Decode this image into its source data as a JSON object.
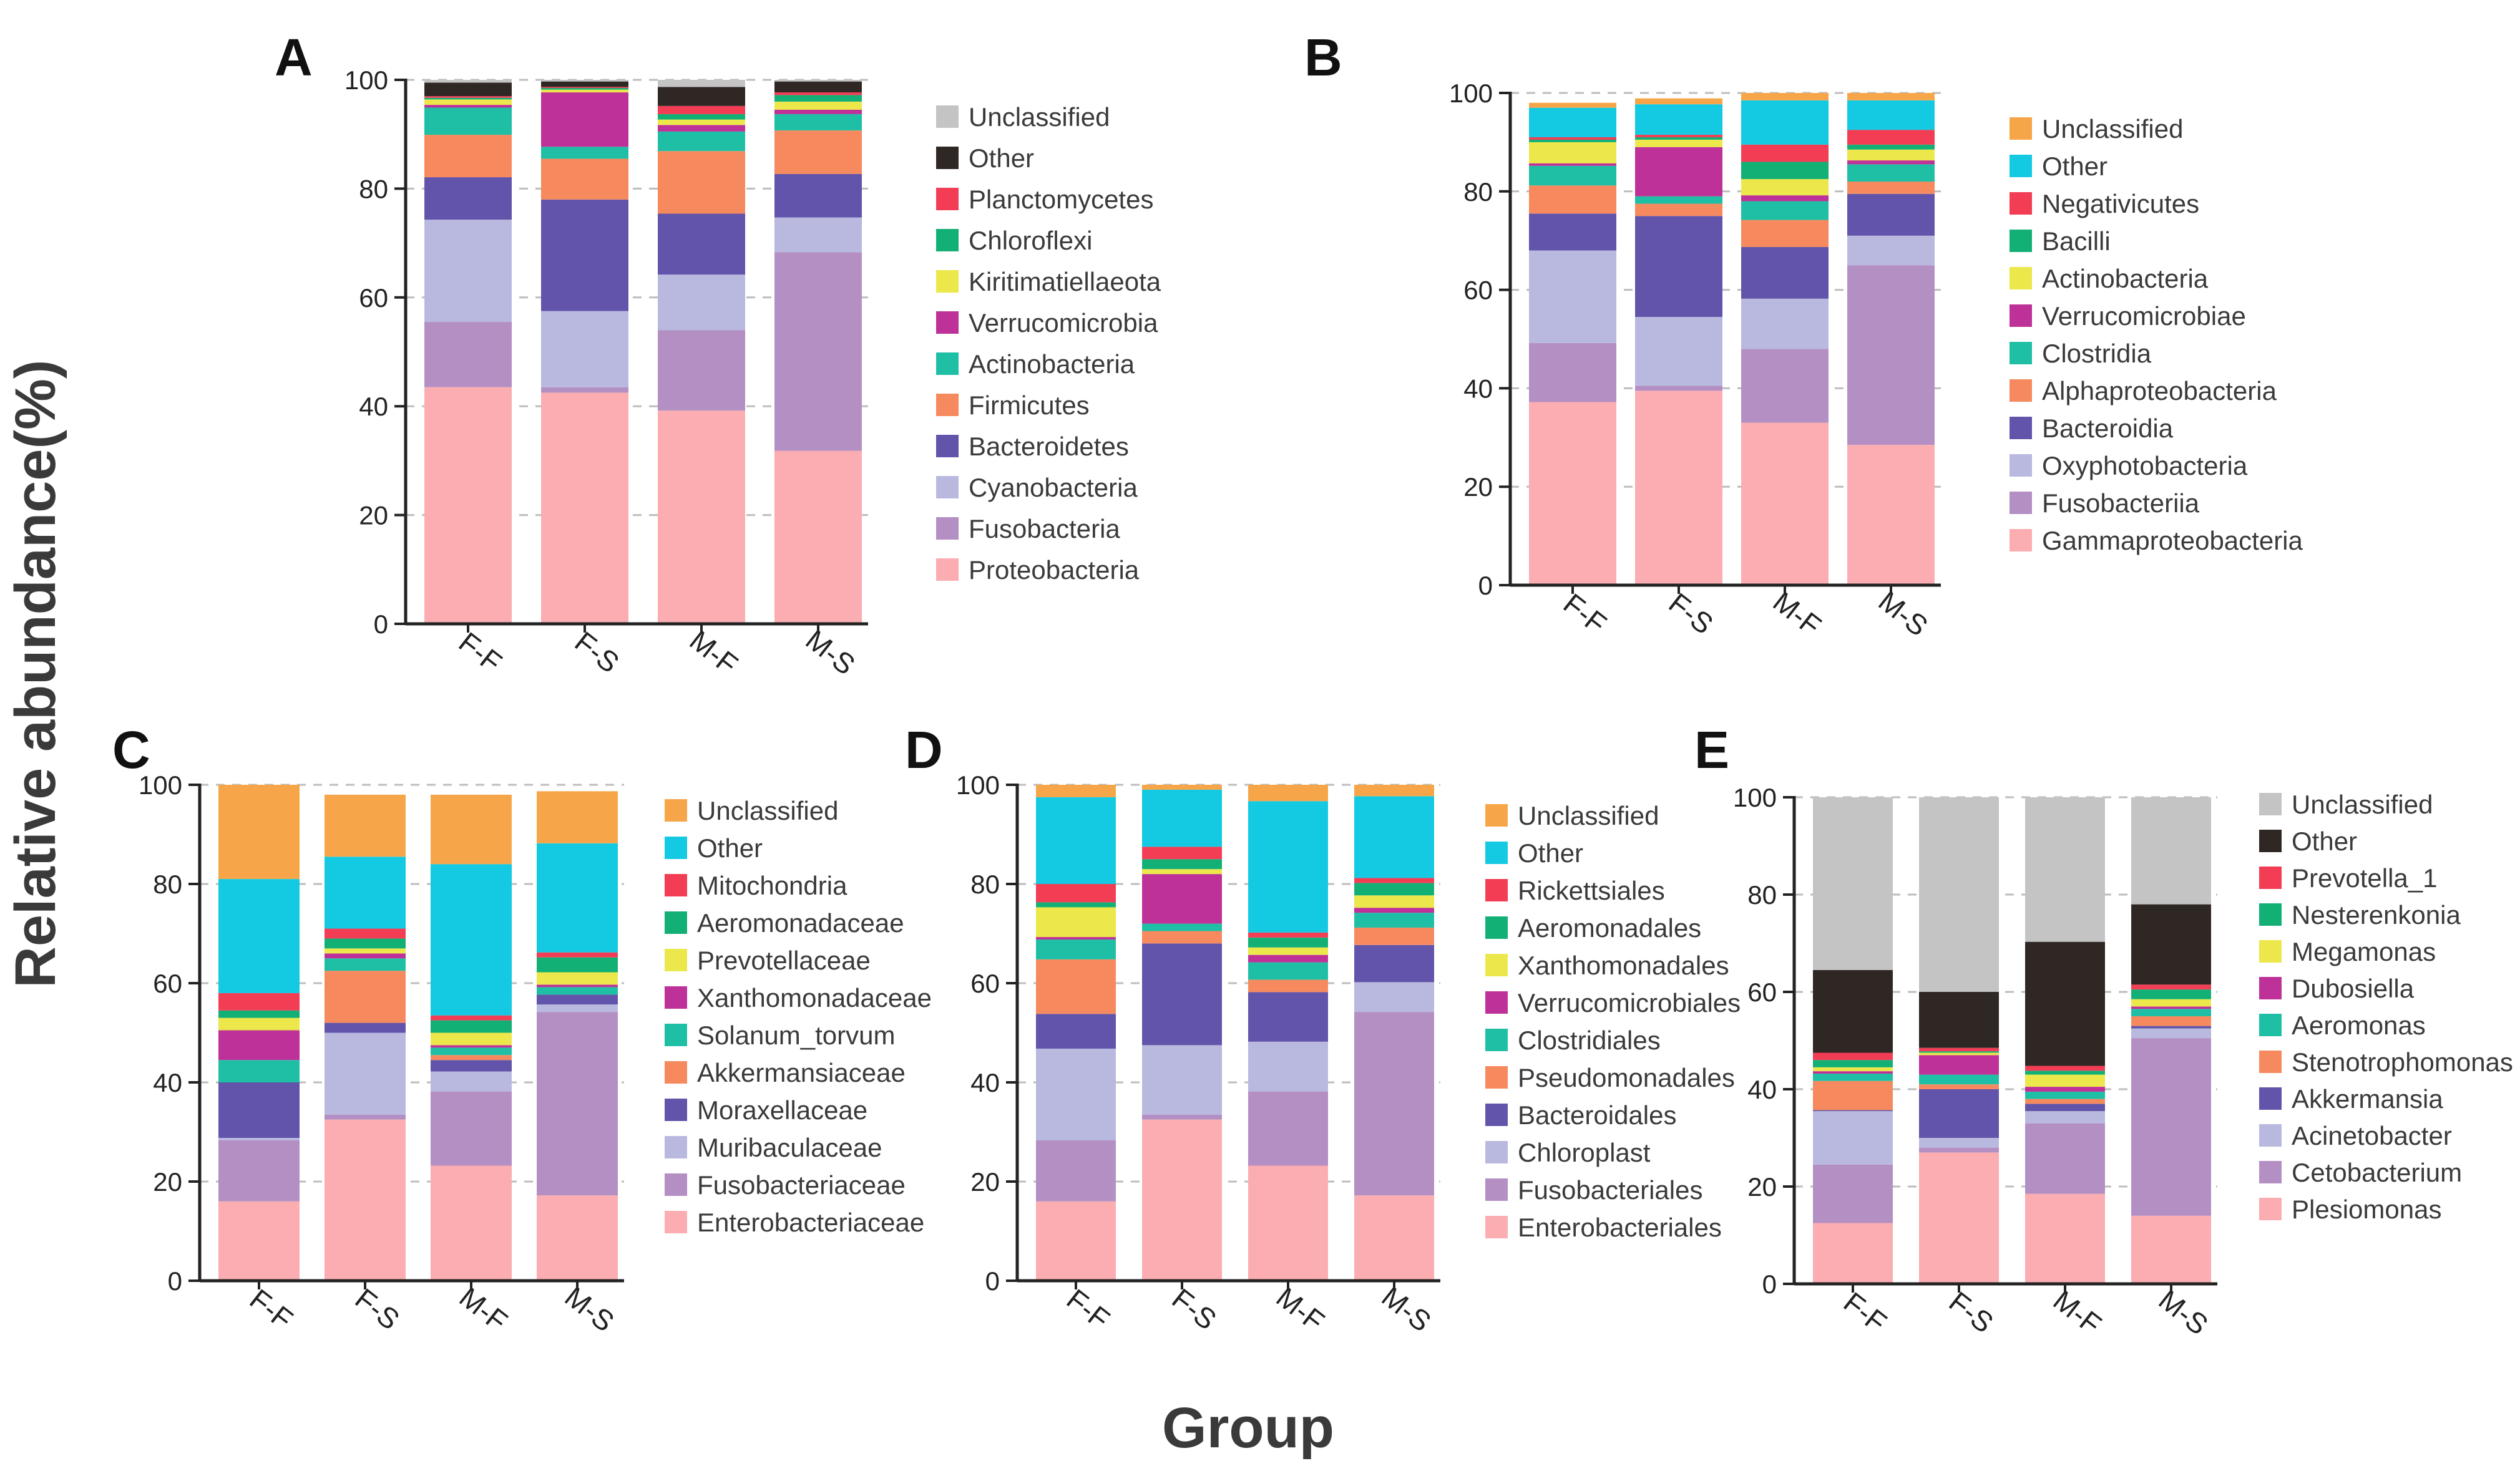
{
  "figure": {
    "ylabel": "Relative abundance(%)",
    "xlabel": "Group"
  },
  "chart_data": [
    {
      "type": "bar",
      "stacked": true,
      "panel": "A",
      "categories": [
        "F-F",
        "F-S",
        "M-F",
        "M-S"
      ],
      "ylim": [
        0,
        100
      ],
      "yticks": [
        0,
        20,
        40,
        60,
        80,
        100
      ],
      "legend_placement": "right",
      "series": [
        {
          "name": "Proteobacteria",
          "color": "#fbadb1",
          "values": [
            43.5,
            42.5,
            39.2,
            31.8
          ]
        },
        {
          "name": "Fusobacteria",
          "color": "#b48fc3",
          "values": [
            12.0,
            1.0,
            14.8,
            36.5
          ]
        },
        {
          "name": "Cyanobacteria",
          "color": "#b9b9df",
          "values": [
            18.8,
            14.0,
            10.2,
            6.4
          ]
        },
        {
          "name": "Bacteroidetes",
          "color": "#6154aa",
          "values": [
            7.8,
            20.5,
            11.2,
            8.0
          ]
        },
        {
          "name": "Firmicutes",
          "color": "#f68a5e",
          "values": [
            7.8,
            7.5,
            11.5,
            8.0
          ]
        },
        {
          "name": "Actinobacteria",
          "color": "#1fbfa6",
          "values": [
            5.0,
            2.2,
            3.6,
            3.0
          ]
        },
        {
          "name": "Verrucomicrobia",
          "color": "#be3198",
          "values": [
            0.5,
            10.0,
            1.2,
            0.8
          ]
        },
        {
          "name": "Kiritimatiellaeota",
          "color": "#ece74b",
          "values": [
            1.0,
            0.5,
            1.0,
            1.5
          ]
        },
        {
          "name": "Chloroflexi",
          "color": "#13b076",
          "values": [
            0.3,
            0.3,
            1.0,
            1.2
          ]
        },
        {
          "name": "Planctomycetes",
          "color": "#f23d55",
          "values": [
            0.3,
            0.2,
            1.5,
            0.5
          ]
        },
        {
          "name": "Other",
          "color": "#2f2724",
          "values": [
            2.5,
            1.0,
            3.5,
            2.0
          ]
        },
        {
          "name": "Unclassified",
          "color": "#c4c4c4",
          "values": [
            0.5,
            0.3,
            1.3,
            0.3
          ]
        }
      ]
    },
    {
      "type": "bar",
      "stacked": true,
      "panel": "B",
      "categories": [
        "F-F",
        "F-S",
        "M-F",
        "M-S"
      ],
      "ylim": [
        0,
        100
      ],
      "yticks": [
        0,
        20,
        40,
        60,
        80,
        100
      ],
      "legend_placement": "right",
      "series": [
        {
          "name": "Gammaproteobacteria",
          "color": "#fbadb1",
          "values": [
            37.2,
            39.5,
            33.0,
            28.5
          ]
        },
        {
          "name": "Fusobacteriia",
          "color": "#b48fc3",
          "values": [
            12.0,
            1.0,
            15.0,
            36.5
          ]
        },
        {
          "name": "Oxyphotobacteria",
          "color": "#b9b9df",
          "values": [
            18.8,
            14.0,
            10.2,
            6.0
          ]
        },
        {
          "name": "Bacteroidia",
          "color": "#6154aa",
          "values": [
            7.5,
            20.5,
            10.5,
            8.5
          ]
        },
        {
          "name": "Alphaproteobacteria",
          "color": "#f68a5e",
          "values": [
            5.7,
            2.5,
            5.5,
            2.5
          ]
        },
        {
          "name": "Clostridia",
          "color": "#1fbfa6",
          "values": [
            4.0,
            1.5,
            3.8,
            3.5
          ]
        },
        {
          "name": "Verrucomicrobiae",
          "color": "#be3198",
          "values": [
            0.5,
            10.0,
            1.2,
            0.8
          ]
        },
        {
          "name": "Actinobacteria",
          "color": "#ece74b",
          "values": [
            4.3,
            1.5,
            3.3,
            2.2
          ]
        },
        {
          "name": "Bacilli",
          "color": "#13b076",
          "values": [
            0.5,
            0.5,
            3.5,
            1.0
          ]
        },
        {
          "name": "Negativicutes",
          "color": "#f23d55",
          "values": [
            0.5,
            0.5,
            3.5,
            3.0
          ]
        },
        {
          "name": "Other",
          "color": "#14c9e2",
          "values": [
            6.0,
            6.2,
            9.0,
            6.0
          ]
        },
        {
          "name": "Unclassified",
          "color": "#f6a649",
          "values": [
            1.0,
            1.2,
            1.5,
            1.5
          ]
        }
      ]
    },
    {
      "type": "bar",
      "stacked": true,
      "panel": "C",
      "categories": [
        "F-F",
        "F-S",
        "M-F",
        "M-S"
      ],
      "ylim": [
        0,
        100
      ],
      "yticks": [
        0,
        20,
        40,
        60,
        80,
        100
      ],
      "legend_placement": "right",
      "series": [
        {
          "name": "Enterobacteriaceae",
          "color": "#fbadb1",
          "values": [
            16.0,
            32.5,
            23.2,
            17.2
          ]
        },
        {
          "name": "Fusobacteriaceae",
          "color": "#b48fc3",
          "values": [
            12.3,
            1.0,
            15.0,
            37.0
          ]
        },
        {
          "name": "Muribaculaceae",
          "color": "#b9b9df",
          "values": [
            0.5,
            16.5,
            4.0,
            1.5
          ]
        },
        {
          "name": "Moraxellaceae",
          "color": "#6154aa",
          "values": [
            11.2,
            2.0,
            2.3,
            2.0
          ]
        },
        {
          "name": "Akkermansiaceae",
          "color": "#f68a5e",
          "values": [
            0.0,
            10.5,
            1.0,
            0.0
          ]
        },
        {
          "name": "Solanum_torvum",
          "color": "#1fbfa6",
          "values": [
            4.5,
            2.5,
            1.5,
            1.5
          ]
        },
        {
          "name": "Xanthomonadaceae",
          "color": "#be3198",
          "values": [
            6.0,
            1.0,
            0.5,
            0.5
          ]
        },
        {
          "name": "Prevotellaceae",
          "color": "#ece74b",
          "values": [
            2.5,
            1.0,
            2.5,
            2.5
          ]
        },
        {
          "name": "Aeromonadaceae",
          "color": "#13b076",
          "values": [
            1.5,
            2.0,
            2.5,
            3.0
          ]
        },
        {
          "name": "Mitochondria",
          "color": "#f23d55",
          "values": [
            3.5,
            2.0,
            1.0,
            1.0
          ]
        },
        {
          "name": "Other",
          "color": "#14c9e2",
          "values": [
            23.0,
            14.5,
            30.5,
            22.0
          ]
        },
        {
          "name": "Unclassified",
          "color": "#f6a649",
          "values": [
            19.0,
            12.5,
            14.0,
            10.5
          ]
        }
      ]
    },
    {
      "type": "bar",
      "stacked": true,
      "panel": "D",
      "categories": [
        "F-F",
        "F-S",
        "M-F",
        "M-S"
      ],
      "ylim": [
        0,
        100
      ],
      "yticks": [
        0,
        20,
        40,
        60,
        80,
        100
      ],
      "legend_placement": "right",
      "series": [
        {
          "name": "Enterobacteriales",
          "color": "#fbadb1",
          "values": [
            16.0,
            32.5,
            23.2,
            17.2
          ]
        },
        {
          "name": "Fusobacteriales",
          "color": "#b48fc3",
          "values": [
            12.3,
            1.0,
            15.0,
            37.0
          ]
        },
        {
          "name": "Chloroplast",
          "color": "#b9b9df",
          "values": [
            18.5,
            14.0,
            10.0,
            6.0
          ]
        },
        {
          "name": "Bacteroidales",
          "color": "#6154aa",
          "values": [
            7.0,
            20.5,
            10.0,
            7.5
          ]
        },
        {
          "name": "Pseudomonadales",
          "color": "#f68a5e",
          "values": [
            11.0,
            2.5,
            2.5,
            3.5
          ]
        },
        {
          "name": "Clostridiales",
          "color": "#1fbfa6",
          "values": [
            4.0,
            1.5,
            3.5,
            3.0
          ]
        },
        {
          "name": "Verrucomicrobiales",
          "color": "#be3198",
          "values": [
            0.5,
            10.0,
            1.5,
            1.0
          ]
        },
        {
          "name": "Xanthomonadales",
          "color": "#ece74b",
          "values": [
            6.0,
            1.0,
            1.5,
            2.5
          ]
        },
        {
          "name": "Aeromonadales",
          "color": "#13b076",
          "values": [
            1.0,
            2.0,
            2.0,
            2.5
          ]
        },
        {
          "name": "Rickettsiales",
          "color": "#f23d55",
          "values": [
            3.7,
            2.5,
            1.0,
            1.0
          ]
        },
        {
          "name": "Other",
          "color": "#14c9e2",
          "values": [
            17.5,
            11.5,
            26.5,
            16.5
          ]
        },
        {
          "name": "Unclassified",
          "color": "#f6a649",
          "values": [
            2.5,
            1.0,
            3.3,
            2.3
          ]
        }
      ]
    },
    {
      "type": "bar",
      "stacked": true,
      "panel": "E",
      "categories": [
        "F-F",
        "F-S",
        "M-F",
        "M-S"
      ],
      "ylim": [
        0,
        100
      ],
      "yticks": [
        0,
        20,
        40,
        60,
        80,
        100
      ],
      "legend_placement": "right",
      "series": [
        {
          "name": "Plesiomonas",
          "color": "#fbadb1",
          "values": [
            12.5,
            27.0,
            18.5,
            14.0
          ]
        },
        {
          "name": "Cetobacterium",
          "color": "#b48fc3",
          "values": [
            12.0,
            1.0,
            14.5,
            36.5
          ]
        },
        {
          "name": "Acinetobacter",
          "color": "#b9b9df",
          "values": [
            11.0,
            2.0,
            2.5,
            2.0
          ]
        },
        {
          "name": "Akkermansia",
          "color": "#6154aa",
          "values": [
            0.2,
            10.0,
            1.5,
            0.5
          ]
        },
        {
          "name": "Stenotrophomonas",
          "color": "#f68a5e",
          "values": [
            6.0,
            1.0,
            1.0,
            2.0
          ]
        },
        {
          "name": "Aeromonas",
          "color": "#1fbfa6",
          "values": [
            1.5,
            2.0,
            1.5,
            1.5
          ]
        },
        {
          "name": "Dubosiella",
          "color": "#be3198",
          "values": [
            0.5,
            4.0,
            1.0,
            0.5
          ]
        },
        {
          "name": "Megamonas",
          "color": "#ece74b",
          "values": [
            0.8,
            0.5,
            2.5,
            1.5
          ]
        },
        {
          "name": "Nesterenkonia",
          "color": "#13b076",
          "values": [
            1.5,
            0.3,
            0.8,
            2.0
          ]
        },
        {
          "name": "Prevotella_1",
          "color": "#f23d55",
          "values": [
            1.5,
            0.7,
            1.0,
            1.0
          ]
        },
        {
          "name": "Other",
          "color": "#2f2724",
          "values": [
            17.0,
            11.5,
            25.5,
            16.5
          ]
        },
        {
          "name": "Unclassified",
          "color": "#c4c4c4",
          "values": [
            35.5,
            40.0,
            29.7,
            22.0
          ]
        }
      ]
    }
  ]
}
